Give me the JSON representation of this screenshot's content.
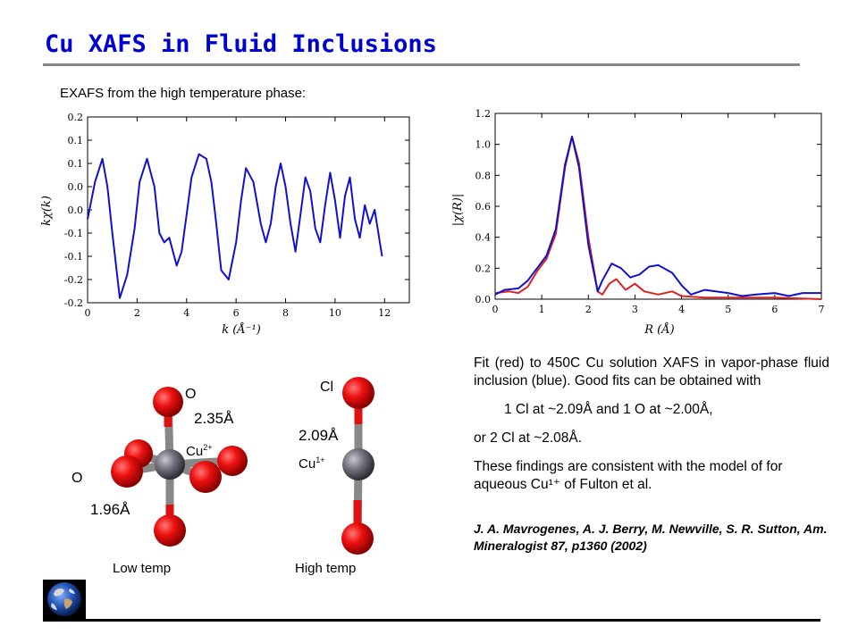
{
  "title": "Cu XAFS in Fluid Inclusions",
  "subtitle": "EXAFS from the high temperature phase:",
  "description": {
    "p1": "Fit (red) to 450C Cu solution XAFS in vapor-phase fluid inclusion (blue).  Good fits can be obtained with",
    "p2": "1 Cl at ~2.09Å and 1 O at ~2.00Å,",
    "p3": "or   2 Cl at ~2.08Å.",
    "p4": "These findings are consistent with the model of for aqueous Cu¹⁺ of Fulton et al.",
    "reference": "J. A. Mavrogenes, A. J. Berry, M. Newville, S. R. Sutton, Am. Mineralogist 87, p1360 (2002)"
  },
  "low_temp": {
    "caption": "Low temp",
    "atom_top": "O",
    "atom_left": "O",
    "center": "Cu",
    "center_charge": "2+",
    "dist_long": "2.35Å",
    "dist_short": "1.96Å"
  },
  "high_temp": {
    "caption": "High temp",
    "atom_top": "Cl",
    "center": "Cu",
    "center_charge": "1+",
    "dist": "2.09Å"
  },
  "colors": {
    "title": "#0000cc",
    "fit_red": "#dd2222",
    "data_blue": "#1111cc"
  },
  "chart_data": [
    {
      "type": "line",
      "xlabel": "k (Å⁻¹)",
      "ylabel": "kχ(k)",
      "xlim": [
        0,
        13
      ],
      "ylim": [
        -0.2,
        0.2
      ],
      "xticks": [
        "0",
        "2",
        "4",
        "6",
        "8",
        "10",
        "12"
      ],
      "yticks": [
        "0.2",
        "0.1",
        "0.1",
        "0.0",
        "0.0",
        "-0.1",
        "-0.1",
        "-0.2",
        "-0.2"
      ],
      "series": [
        {
          "color": "#1111cc",
          "x": [
            0.0,
            0.3,
            0.6,
            0.8,
            1.0,
            1.3,
            1.6,
            1.9,
            2.1,
            2.4,
            2.7,
            2.9,
            3.1,
            3.3,
            3.6,
            3.8,
            4.0,
            4.2,
            4.5,
            4.8,
            5.0,
            5.2,
            5.4,
            5.7,
            6.0,
            6.2,
            6.4,
            6.7,
            7.0,
            7.2,
            7.4,
            7.6,
            7.8,
            8.0,
            8.2,
            8.4,
            8.6,
            8.8,
            9.0,
            9.2,
            9.4,
            9.6,
            9.8,
            10.0,
            10.2,
            10.4,
            10.6,
            10.8,
            11.0,
            11.2,
            11.4,
            11.6,
            11.9
          ],
          "y": [
            -0.02,
            0.06,
            0.11,
            0.05,
            -0.05,
            -0.19,
            -0.14,
            -0.04,
            0.06,
            0.11,
            0.05,
            -0.05,
            -0.07,
            -0.06,
            -0.12,
            -0.09,
            -0.01,
            0.07,
            0.12,
            0.11,
            0.06,
            -0.03,
            -0.13,
            -0.15,
            -0.07,
            0.02,
            0.09,
            0.06,
            -0.03,
            -0.07,
            -0.03,
            0.05,
            0.1,
            0.05,
            -0.03,
            -0.09,
            -0.01,
            0.07,
            0.04,
            -0.04,
            -0.07,
            0.01,
            0.08,
            0.02,
            -0.06,
            0.03,
            0.07,
            -0.02,
            -0.06,
            0.01,
            -0.03,
            0.0,
            -0.1
          ]
        }
      ]
    },
    {
      "type": "line",
      "xlabel": "R (Å)",
      "ylabel": "|χ(R)|",
      "xlim": [
        0,
        7
      ],
      "ylim": [
        0.0,
        1.2
      ],
      "xticks": [
        "0",
        "1",
        "2",
        "3",
        "4",
        "5",
        "6",
        "7"
      ],
      "yticks": [
        "1.2",
        "1.0",
        "0.8",
        "0.6",
        "0.4",
        "0.2",
        "0.0"
      ],
      "series": [
        {
          "color": "#dd2222",
          "x": [
            0.0,
            0.3,
            0.5,
            0.7,
            0.9,
            1.1,
            1.3,
            1.5,
            1.65,
            1.8,
            2.0,
            2.2,
            2.3,
            2.45,
            2.6,
            2.8,
            3.0,
            3.2,
            3.5,
            3.8,
            4.0,
            4.5,
            5.0,
            6.0,
            7.0
          ],
          "y": [
            0.04,
            0.05,
            0.04,
            0.08,
            0.18,
            0.26,
            0.42,
            0.85,
            1.05,
            0.88,
            0.4,
            0.05,
            0.03,
            0.1,
            0.13,
            0.06,
            0.1,
            0.05,
            0.03,
            0.05,
            0.02,
            0.01,
            0.01,
            0.01,
            0.0
          ]
        },
        {
          "color": "#1111cc",
          "x": [
            0.0,
            0.2,
            0.5,
            0.7,
            0.9,
            1.1,
            1.3,
            1.5,
            1.65,
            1.8,
            2.0,
            2.2,
            2.3,
            2.5,
            2.7,
            2.9,
            3.1,
            3.3,
            3.5,
            3.8,
            4.0,
            4.2,
            4.5,
            5.0,
            5.3,
            5.6,
            6.0,
            6.3,
            6.6,
            7.0
          ],
          "y": [
            0.03,
            0.06,
            0.07,
            0.12,
            0.2,
            0.28,
            0.45,
            0.87,
            1.05,
            0.85,
            0.35,
            0.05,
            0.12,
            0.23,
            0.2,
            0.14,
            0.16,
            0.21,
            0.22,
            0.17,
            0.09,
            0.03,
            0.06,
            0.04,
            0.02,
            0.03,
            0.04,
            0.02,
            0.04,
            0.04
          ]
        }
      ]
    }
  ]
}
